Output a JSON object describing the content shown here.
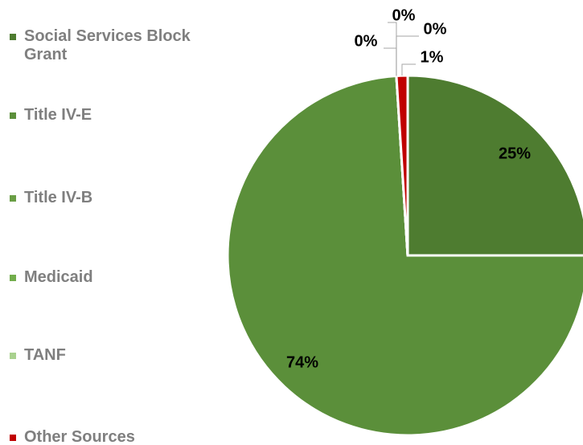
{
  "chart_data": {
    "type": "pie",
    "categories": [
      "Social Services Block Grant",
      "Title IV-E",
      "Title IV-B",
      "Medicaid",
      "TANF",
      "Other Sources"
    ],
    "values": [
      25,
      74,
      0,
      0,
      0,
      1
    ],
    "value_labels": [
      "25%",
      "74%",
      "0%",
      "0%",
      "0%",
      "1%"
    ],
    "colors": [
      "#4e7c30",
      "#5b8f3a",
      "#6a9e45",
      "#72ad4c",
      "#a9d18e",
      "#c00000"
    ]
  }
}
